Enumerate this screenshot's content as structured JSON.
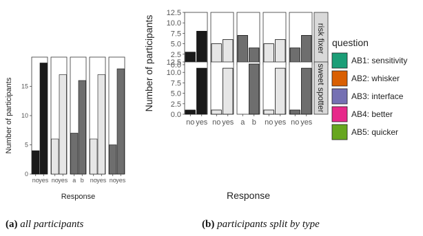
{
  "chart_data": [
    {
      "type": "bar",
      "panel_id": "a",
      "caption_label": "(a)",
      "caption_text": "all participants",
      "xlabel": "Response",
      "ylabel": "Number of participants",
      "ylim": [
        0,
        20
      ],
      "y_ticks": [
        0,
        5,
        10,
        15
      ],
      "facets": [
        {
          "categories": [
            "no",
            "yes"
          ],
          "values": [
            4,
            19
          ],
          "color": "#1a1a1a",
          "tick_labels": [
            "no",
            "yes"
          ]
        },
        {
          "categories": [
            "no",
            "yes"
          ],
          "values": [
            6,
            17
          ],
          "color": "#e6e6e6",
          "tick_labels": [
            "no",
            "yes"
          ]
        },
        {
          "categories": [
            "a",
            "b"
          ],
          "values": [
            7,
            16
          ],
          "color": "#6e6e6e",
          "tick_labels": [
            "a",
            "b"
          ]
        },
        {
          "categories": [
            "no",
            "yes"
          ],
          "values": [
            6,
            17
          ],
          "color": "#e6e6e6",
          "tick_labels": [
            "no",
            "yes"
          ]
        },
        {
          "categories": [
            "no",
            "yes"
          ],
          "values": [
            5,
            18
          ],
          "color": "#6e6e6e",
          "tick_labels": [
            "no",
            "yes"
          ]
        }
      ]
    },
    {
      "type": "bar",
      "panel_id": "b",
      "caption_label": "(b)",
      "caption_text": "participants split by type",
      "xlabel": "Response",
      "ylabel": "Number of participants",
      "ylim": [
        0,
        12.5
      ],
      "y_ticks": [
        0.0,
        2.5,
        5.0,
        7.5,
        10.0,
        12.5
      ],
      "y_tick_labels": [
        "0.0",
        "2.5",
        "5.0",
        "7.5",
        "10.0",
        "12.5"
      ],
      "rows": [
        {
          "strip": "risk fixer",
          "facets": [
            {
              "values": [
                3,
                8
              ],
              "color": "#1a1a1a"
            },
            {
              "values": [
                5,
                6
              ],
              "color": "#e6e6e6"
            },
            {
              "values": [
                7,
                4
              ],
              "color": "#6e6e6e"
            },
            {
              "values": [
                5,
                6
              ],
              "color": "#e6e6e6"
            },
            {
              "values": [
                4,
                7
              ],
              "color": "#6e6e6e"
            }
          ]
        },
        {
          "strip": "sweet spotter",
          "facets": [
            {
              "values": [
                1,
                11
              ],
              "color": "#1a1a1a"
            },
            {
              "values": [
                1,
                11
              ],
              "color": "#e6e6e6"
            },
            {
              "values": [
                0,
                12
              ],
              "color": "#6e6e6e"
            },
            {
              "values": [
                1,
                11
              ],
              "color": "#e6e6e6"
            },
            {
              "values": [
                1,
                11
              ],
              "color": "#6e6e6e"
            }
          ]
        }
      ],
      "tick_labels": [
        [
          "no",
          "yes"
        ],
        [
          "no",
          "yes"
        ],
        [
          "a",
          "b"
        ],
        [
          "no",
          "yes"
        ],
        [
          "no",
          "yes"
        ]
      ],
      "legend": {
        "title": "question",
        "placement": "right",
        "entries": [
          {
            "label": "AB1: sensitivity",
            "color": "#1b9e77"
          },
          {
            "label": "AB2: whisker",
            "color": "#d95f02"
          },
          {
            "label": "AB3: interface",
            "color": "#7570b3"
          },
          {
            "label": "AB4: better",
            "color": "#e7298a"
          },
          {
            "label": "AB5: quicker",
            "color": "#66a61e"
          }
        ]
      }
    }
  ]
}
